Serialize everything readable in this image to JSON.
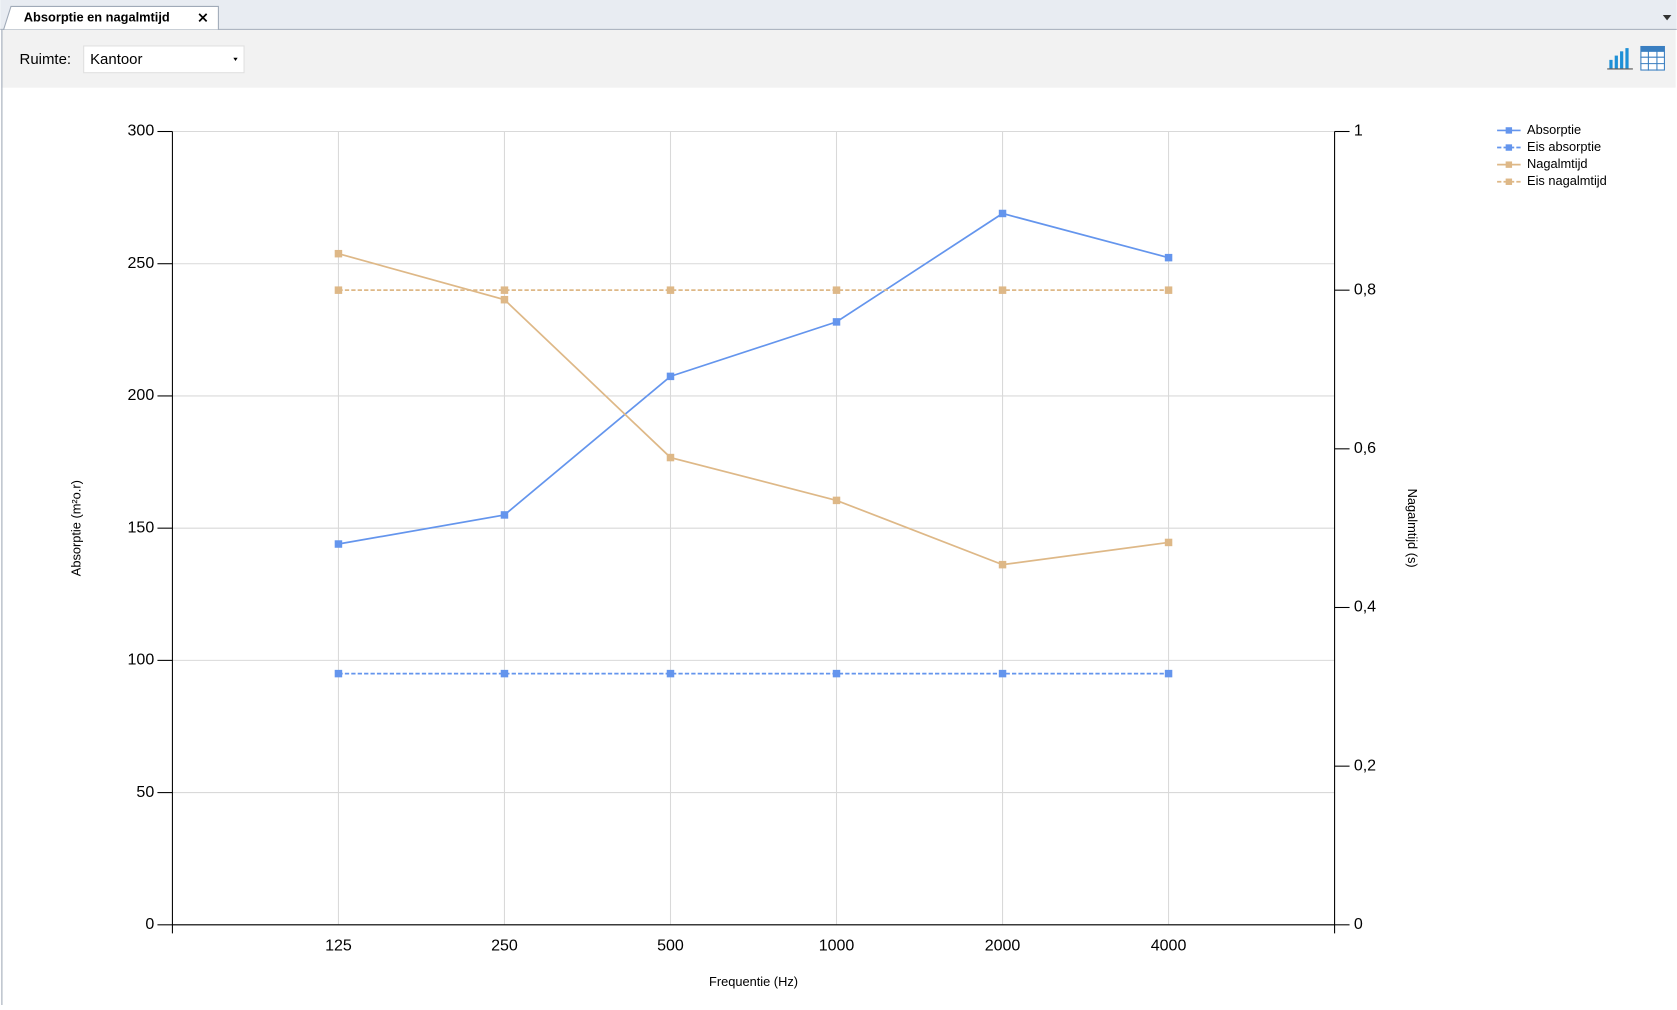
{
  "ui": {
    "tab_title": "Absorptie en nagalmtijd",
    "room_label": "Ruimte:",
    "room_value": "Kantoor"
  },
  "chart_data": {
    "type": "line",
    "x_label": "Frequentie (Hz)",
    "y_label": "Absorptie (m²o.r)",
    "y2_label": "Nagalmtijd (s)",
    "categories": [
      "125",
      "250",
      "500",
      "1000",
      "2000",
      "4000"
    ],
    "ylim": [
      0,
      300
    ],
    "yticks": [
      0,
      50,
      100,
      150,
      200,
      250,
      300
    ],
    "y2lim": [
      0,
      1
    ],
    "y2ticks": [
      0,
      {
        "value": 0.2,
        "label": "0,2"
      },
      {
        "value": 0.4,
        "label": "0,4"
      },
      {
        "value": 0.6,
        "label": "0,6"
      },
      {
        "value": 0.8,
        "label": "0,8"
      },
      1
    ],
    "grid": true,
    "legend": "top-right",
    "series": [
      {
        "name": "Absorptie",
        "color": "#6495ed",
        "dashed": false,
        "values": [
          144,
          155,
          207.4,
          228,
          269,
          252.3
        ]
      },
      {
        "name": "Eis absorptie",
        "color": "#6495ed",
        "dashed": true,
        "values": [
          95,
          95,
          95,
          95,
          95,
          95
        ]
      },
      {
        "name": "Nagalmtijd",
        "color": "#deb887",
        "dashed": false,
        "axis": "y2",
        "values": [
          0.846,
          0.788,
          0.589,
          0.535,
          0.454,
          0.482
        ]
      },
      {
        "name": "Eis nagalmtijd",
        "color": "#deb887",
        "dashed": true,
        "axis": "y2",
        "values": [
          0.8,
          0.8,
          0.8,
          0.8,
          0.8,
          0.8
        ]
      }
    ]
  }
}
